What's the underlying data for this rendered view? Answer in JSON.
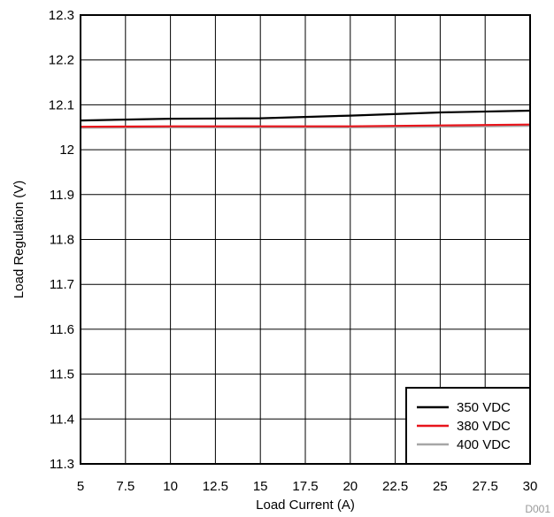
{
  "chart_data": {
    "type": "line",
    "title": "",
    "xlabel": "Load Current (A)",
    "ylabel": "Load Regulation (V)",
    "xlim": [
      5,
      30
    ],
    "ylim": [
      11.3,
      12.3
    ],
    "x_ticks": [
      "5",
      "7.5",
      "10",
      "12.5",
      "15",
      "17.5",
      "20",
      "22.5",
      "25",
      "27.5",
      "30"
    ],
    "y_ticks": [
      "11.3",
      "11.4",
      "11.5",
      "11.6",
      "11.7",
      "11.8",
      "11.9",
      "12",
      "12.1",
      "12.2",
      "12.3"
    ],
    "grid": true,
    "legend_position": "bottom-right",
    "figure_id": "D001",
    "series": [
      {
        "name": "350 VDC",
        "color": "#000000",
        "x": [
          5,
          10,
          15,
          20,
          25,
          30
        ],
        "y": [
          12.065,
          12.069,
          12.07,
          12.076,
          12.083,
          12.087
        ]
      },
      {
        "name": "380 VDC",
        "color": "#e8141b",
        "x": [
          5,
          10,
          15,
          20,
          25,
          30
        ],
        "y": [
          12.051,
          12.052,
          12.052,
          12.052,
          12.054,
          12.056
        ]
      },
      {
        "name": "400 VDC",
        "color": "#a6a6a6",
        "x": [
          5,
          10,
          15,
          20,
          25,
          30
        ],
        "y": [
          12.049,
          12.05,
          12.05,
          12.05,
          12.051,
          12.053
        ]
      }
    ]
  }
}
